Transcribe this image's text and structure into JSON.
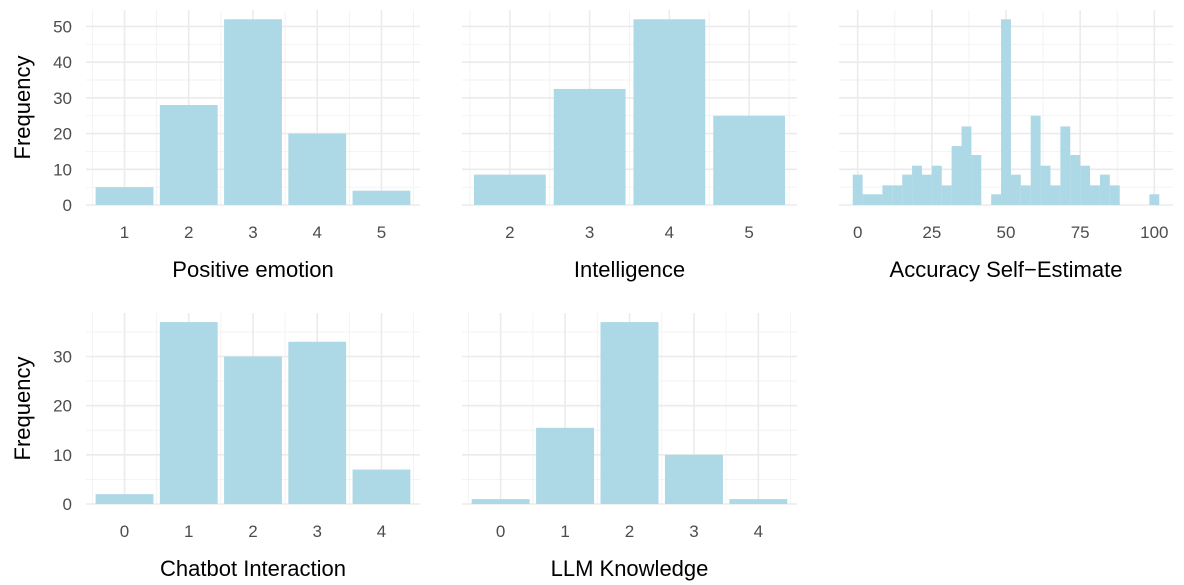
{
  "chart_data": [
    {
      "type": "bar",
      "xlabel": "Positive emotion",
      "ylabel": "Frequency",
      "categories": [
        "1",
        "2",
        "3",
        "4",
        "5"
      ],
      "values": [
        5,
        28,
        52,
        20,
        4
      ],
      "yticks": [
        0,
        10,
        20,
        30,
        40,
        50
      ],
      "ylim": [
        0,
        54.6
      ],
      "bar_color": "#add8e6",
      "grid": true
    },
    {
      "type": "bar",
      "xlabel": "Intelligence",
      "ylabel": "",
      "categories": [
        "2",
        "3",
        "4",
        "5"
      ],
      "values": [
        8.5,
        32.5,
        52,
        25
      ],
      "yticks": [
        0,
        10,
        20,
        30,
        40,
        50
      ],
      "ylim": [
        0,
        54.6
      ],
      "bar_color": "#add8e6",
      "grid": true
    },
    {
      "type": "histogram",
      "xlabel": "Accuracy Self−Estimate",
      "ylabel": "",
      "bin_width": 3.33,
      "bins": [
        {
          "x": 0,
          "count": 8.5
        },
        {
          "x": 3.33,
          "count": 3
        },
        {
          "x": 6.67,
          "count": 3
        },
        {
          "x": 10,
          "count": 5.5
        },
        {
          "x": 13.33,
          "count": 5.5
        },
        {
          "x": 16.67,
          "count": 8.5
        },
        {
          "x": 20,
          "count": 11
        },
        {
          "x": 23.33,
          "count": 8.5
        },
        {
          "x": 26.67,
          "count": 11
        },
        {
          "x": 30,
          "count": 5.5
        },
        {
          "x": 33.33,
          "count": 16.5
        },
        {
          "x": 36.67,
          "count": 22
        },
        {
          "x": 40,
          "count": 14
        },
        {
          "x": 43.33,
          "count": 0
        },
        {
          "x": 46.67,
          "count": 3
        },
        {
          "x": 50,
          "count": 52
        },
        {
          "x": 53.33,
          "count": 8.5
        },
        {
          "x": 56.67,
          "count": 5.5
        },
        {
          "x": 60,
          "count": 25
        },
        {
          "x": 63.33,
          "count": 11
        },
        {
          "x": 66.67,
          "count": 5.5
        },
        {
          "x": 70,
          "count": 22
        },
        {
          "x": 73.33,
          "count": 14
        },
        {
          "x": 76.67,
          "count": 11
        },
        {
          "x": 80,
          "count": 5.5
        },
        {
          "x": 83.33,
          "count": 8.5
        },
        {
          "x": 86.67,
          "count": 5.5
        },
        {
          "x": 90,
          "count": 0
        },
        {
          "x": 93.33,
          "count": 0
        },
        {
          "x": 96.67,
          "count": 0
        },
        {
          "x": 100,
          "count": 3
        }
      ],
      "xticks": [
        0,
        25,
        50,
        75,
        100
      ],
      "xlim": [
        -6.3,
        106.3
      ],
      "yticks": [
        0,
        10,
        20,
        30,
        40,
        50
      ],
      "ylim": [
        0,
        54.6
      ],
      "bar_color": "#add8e6",
      "grid": true
    },
    {
      "type": "bar",
      "xlabel": "Chatbot Interaction",
      "ylabel": "Frequency",
      "categories": [
        "0",
        "1",
        "2",
        "3",
        "4"
      ],
      "values": [
        2,
        37,
        30,
        33,
        7
      ],
      "yticks": [
        0,
        10,
        20,
        30
      ],
      "ylim": [
        0,
        38.85
      ],
      "bar_color": "#add8e6",
      "grid": true
    },
    {
      "type": "bar",
      "xlabel": "LLM Knowledge",
      "ylabel": "",
      "categories": [
        "0",
        "1",
        "2",
        "3",
        "4"
      ],
      "values": [
        1,
        15.5,
        37,
        10,
        1
      ],
      "yticks": [
        0,
        10,
        20,
        30
      ],
      "ylim": [
        0,
        38.85
      ],
      "bar_color": "#add8e6",
      "grid": true
    }
  ]
}
